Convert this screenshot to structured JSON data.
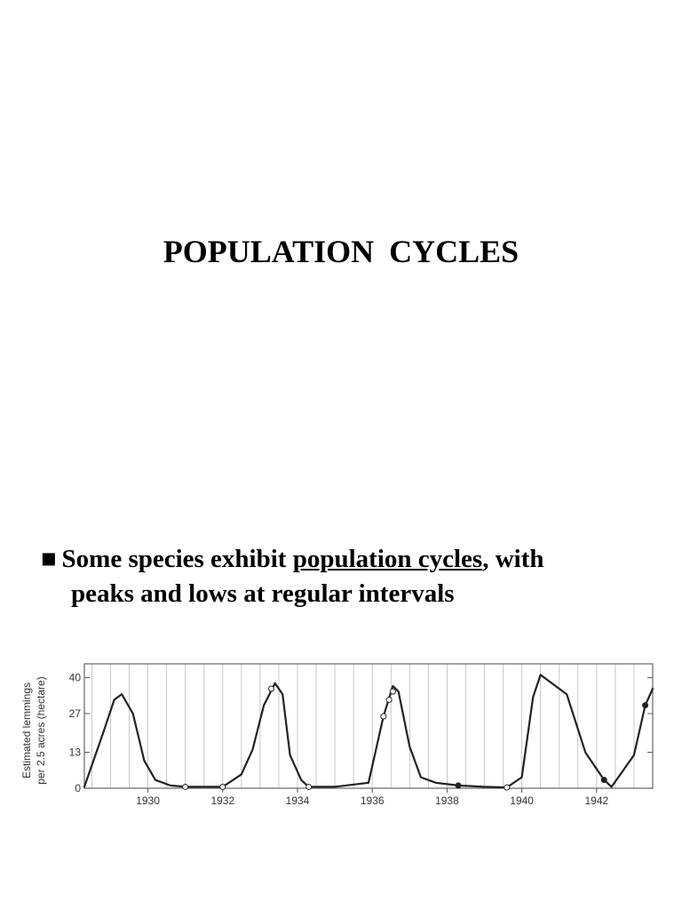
{
  "slide": {
    "title": "POPULATION  CYCLES",
    "bullet_marker": "■",
    "bullet_pre": "Some species exhibit ",
    "bullet_term": "population cycles",
    "bullet_post": ", with",
    "bullet_line2": "peaks and lows at regular intervals"
  },
  "chart_data": {
    "type": "line",
    "title": "",
    "xlabel": "",
    "ylabel": "Estimated lemmings per 2.5 acres (hectare)",
    "ylabel_lines": [
      "Estimated lemmings",
      "per 2.5 acres (hectare)"
    ],
    "xlim": [
      1928.3,
      1943.5
    ],
    "ylim": [
      0,
      45
    ],
    "xticks": [
      1930,
      1932,
      1934,
      1936,
      1938,
      1940,
      1942
    ],
    "xtick_labels": [
      "1930",
      "1932",
      "1934",
      "1936",
      "1938",
      "1940",
      "1942"
    ],
    "yticks": [
      0,
      13,
      27,
      40
    ],
    "ytick_labels": [
      "0",
      "13",
      "27",
      "40"
    ],
    "grid": "vertical",
    "line_color": "#222222",
    "series": [
      {
        "values": [
          [
            1928.3,
            0.5
          ],
          [
            1928.8,
            20
          ],
          [
            1929.1,
            32
          ],
          [
            1929.3,
            34
          ],
          [
            1929.6,
            27
          ],
          [
            1929.9,
            10
          ],
          [
            1930.2,
            3
          ],
          [
            1930.6,
            1
          ],
          [
            1931.0,
            0.5
          ],
          [
            1932.0,
            0.5
          ],
          [
            1932.5,
            5
          ],
          [
            1932.8,
            14
          ],
          [
            1933.1,
            30
          ],
          [
            1933.4,
            38
          ],
          [
            1933.6,
            34
          ],
          [
            1933.8,
            12
          ],
          [
            1934.1,
            3
          ],
          [
            1934.3,
            0.5
          ],
          [
            1935.0,
            0.5
          ],
          [
            1935.9,
            2
          ],
          [
            1936.3,
            26
          ],
          [
            1936.55,
            37
          ],
          [
            1936.7,
            35
          ],
          [
            1937.0,
            15
          ],
          [
            1937.3,
            4
          ],
          [
            1937.7,
            2
          ],
          [
            1938.3,
            1
          ],
          [
            1939.0,
            0.5
          ],
          [
            1939.6,
            0.3
          ],
          [
            1940.0,
            4
          ],
          [
            1940.3,
            33
          ],
          [
            1940.5,
            41
          ],
          [
            1941.2,
            34
          ],
          [
            1941.7,
            13
          ],
          [
            1942.2,
            3
          ],
          [
            1942.4,
            0.5
          ],
          [
            1943.0,
            12
          ],
          [
            1943.3,
            30
          ],
          [
            1943.5,
            36
          ]
        ]
      }
    ],
    "open_markers": [
      [
        1931.0,
        0.5
      ],
      [
        1932.0,
        0.5
      ],
      [
        1933.3,
        36
      ],
      [
        1934.3,
        0.5
      ],
      [
        1936.3,
        26
      ],
      [
        1936.45,
        32
      ],
      [
        1936.55,
        35
      ],
      [
        1939.6,
        0.3
      ]
    ],
    "filled_markers": [
      [
        1938.3,
        1
      ],
      [
        1942.2,
        3
      ],
      [
        1943.3,
        30
      ]
    ]
  }
}
